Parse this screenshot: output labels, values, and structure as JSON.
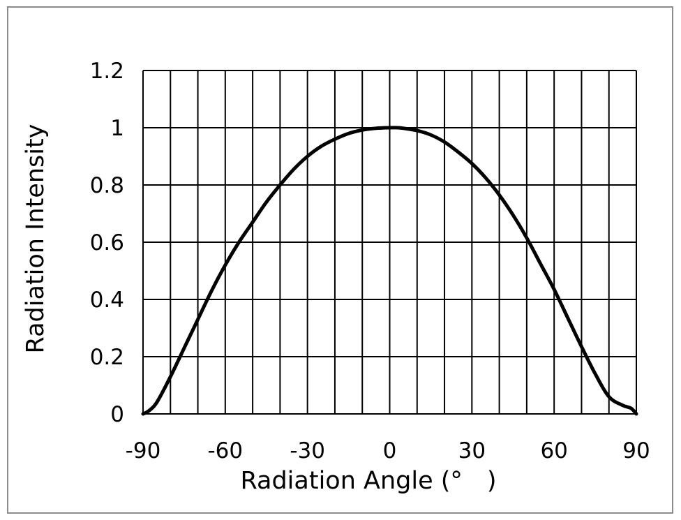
{
  "chart_data": {
    "type": "line",
    "title": "",
    "xlabel": "Radiation Angle (°　)",
    "ylabel": "Radiation Intensity",
    "xlim": [
      -90,
      90
    ],
    "ylim": [
      0,
      1.2
    ],
    "x_ticks": [
      -90,
      -60,
      -30,
      0,
      30,
      60,
      90
    ],
    "x_tick_labels": [
      "-90",
      "-60",
      "-30",
      "0",
      "30",
      "60",
      "90"
    ],
    "x_grid_step": 10,
    "y_ticks": [
      0,
      0.2,
      0.4,
      0.6,
      0.8,
      1,
      1.2
    ],
    "y_tick_labels": [
      "0",
      "0.2",
      "0.4",
      "0.6",
      "0.8",
      "1",
      "1.2"
    ],
    "grid": true,
    "colors": {
      "line": "#000000",
      "grid": "#000000",
      "frame": "#8c8c8c"
    },
    "series": [
      {
        "name": "Radiation Intensity",
        "x": [
          -90,
          -88,
          -85,
          -80,
          -75,
          -70,
          -65,
          -60,
          -55,
          -50,
          -45,
          -40,
          -35,
          -30,
          -25,
          -20,
          -15,
          -10,
          -5,
          0,
          3,
          5,
          10,
          15,
          20,
          25,
          30,
          35,
          40,
          45,
          50,
          55,
          60,
          65,
          70,
          75,
          80,
          85,
          88,
          90
        ],
        "y": [
          0.0,
          0.01,
          0.04,
          0.13,
          0.23,
          0.33,
          0.43,
          0.52,
          0.6,
          0.67,
          0.74,
          0.8,
          0.855,
          0.9,
          0.935,
          0.96,
          0.98,
          0.992,
          0.998,
          1.0,
          1.0,
          0.998,
          0.99,
          0.975,
          0.95,
          0.915,
          0.875,
          0.825,
          0.765,
          0.695,
          0.615,
          0.525,
          0.435,
          0.335,
          0.235,
          0.14,
          0.06,
          0.03,
          0.02,
          0.0
        ]
      }
    ]
  }
}
